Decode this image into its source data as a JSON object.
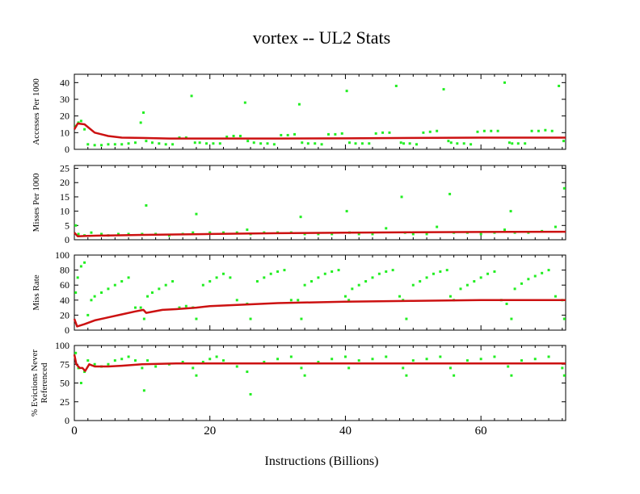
{
  "chart_data": {
    "type": "scatter",
    "title": "vortex -- UL2  Stats",
    "xlabel": "Instructions (Billions)",
    "xlim": [
      0,
      72.5
    ],
    "x_ticks": [
      0,
      20,
      40,
      60
    ],
    "x_tick_labels": [
      "0",
      "20",
      "40",
      "60"
    ],
    "colors": {
      "samples": "#22ee22",
      "cumulative": "#cc1111"
    },
    "panels": [
      {
        "ylabel": "Accesses Per 1000",
        "ylim": [
          0,
          45
        ],
        "y_ticks": [
          0,
          10,
          20,
          30,
          40
        ],
        "y_tick_labels": [
          "0",
          "10",
          "20",
          "30",
          "40"
        ],
        "series": [
          {
            "name": "cumulative",
            "x": [
              0,
              0.5,
              1.5,
              3,
              5,
              7,
              10,
              14,
              20,
              30,
              40,
              50,
              60,
              72.5
            ],
            "y": [
              12,
              15.5,
              15,
              10,
              8,
              7,
              6.8,
              6.5,
              6.5,
              6.5,
              6.6,
              6.8,
              7,
              7
            ]
          },
          {
            "name": "samples",
            "x": [
              0.2,
              0.6,
              1.0,
              1.5,
              2,
              3,
              4,
              5,
              6,
              7,
              8,
              9,
              9.8,
              10.2,
              10.6,
              11.5,
              12.5,
              13.5,
              14.5,
              15.5,
              16.5,
              17.3,
              17.8,
              18.5,
              19.5,
              20.5,
              21.5,
              22.5,
              23.5,
              24.5,
              25.2,
              25.6,
              26.5,
              27.5,
              28.5,
              29.5,
              30.5,
              31.5,
              32.5,
              33.2,
              33.6,
              34.5,
              35.5,
              36.5,
              37.5,
              38.5,
              39.5,
              40.2,
              40.6,
              41.5,
              42.5,
              43.5,
              44.5,
              45.5,
              46.5,
              47.5,
              48.2,
              48.6,
              49.5,
              50.5,
              51.5,
              52.5,
              53.5,
              54.5,
              55.2,
              55.6,
              56.5,
              57.5,
              58.5,
              59.5,
              60.5,
              61.5,
              62.5,
              63.5,
              64.2,
              64.6,
              65.5,
              66.5,
              67.5,
              68.5,
              69.5,
              70.5,
              71.5,
              72.2
            ],
            "y": [
              14,
              16,
              17,
              12,
              3,
              2.5,
              2.5,
              3,
              3,
              3,
              3.5,
              4,
              16,
              22,
              5,
              4,
              3.5,
              3,
              3,
              7,
              7,
              32,
              4,
              4,
              3.5,
              3.5,
              3.5,
              7.5,
              8,
              8,
              28,
              5,
              4,
              3.5,
              3.5,
              3,
              8.5,
              8.5,
              9,
              27,
              4,
              3.5,
              3.5,
              3,
              9,
              9,
              9.5,
              35,
              4,
              3.5,
              3.5,
              3.5,
              9.5,
              10,
              10,
              38,
              4,
              3.5,
              3.5,
              3,
              10,
              10.5,
              11,
              36,
              5,
              4,
              3.5,
              3.5,
              3,
              10.5,
              11,
              11,
              11,
              40,
              4,
              3.5,
              3.5,
              3.5,
              11,
              11,
              11.5,
              11,
              38,
              5
            ]
          }
        ]
      },
      {
        "ylabel": "Misses Per 1000",
        "ylim": [
          0,
          26
        ],
        "y_ticks": [
          0,
          5,
          10,
          15,
          20,
          25
        ],
        "y_tick_labels": [
          "0",
          "5",
          "10",
          "15",
          "20",
          "25"
        ],
        "series": [
          {
            "name": "cumulative",
            "x": [
              0,
              0.5,
              1.5,
              3,
              5,
              10,
              20,
              30,
              40,
              50,
              60,
              72.5
            ],
            "y": [
              2.5,
              1.2,
              1.3,
              1.4,
              1.5,
              1.7,
              2.0,
              2.3,
              2.5,
              2.6,
              2.7,
              2.8
            ]
          },
          {
            "name": "samples",
            "x": [
              0.2,
              0.6,
              1.5,
              2.5,
              4,
              5,
              6.5,
              8,
              10,
              10.6,
              12,
              14,
              16,
              17.5,
              18,
              20,
              22,
              24,
              25.5,
              26,
              28,
              30,
              32,
              33.4,
              34,
              36,
              38,
              40.2,
              40.6,
              42,
              44,
              46,
              48.3,
              48.8,
              50,
              52,
              53.5,
              55.4,
              56,
              58,
              60,
              62,
              63.5,
              64.4,
              65,
              67,
              69,
              71,
              72.3
            ],
            "y": [
              5,
              2,
              1.5,
              2.5,
              2,
              1.5,
              2,
              2,
              2,
              12,
              2,
              1.5,
              2,
              2.5,
              9,
              2.5,
              2.5,
              2.5,
              3.5,
              2,
              2.5,
              2.5,
              2.5,
              8,
              2,
              2,
              2,
              10,
              2.5,
              2,
              2,
              4,
              15,
              2.5,
              2,
              2,
              4.5,
              16,
              2.5,
              2.5,
              2,
              2.5,
              3.5,
              10,
              2.5,
              2.5,
              3,
              4.5,
              18
            ]
          }
        ]
      },
      {
        "ylabel": "Miss Rate",
        "ylim": [
          0,
          100
        ],
        "y_ticks": [
          0,
          20,
          40,
          60,
          80,
          100
        ],
        "y_tick_labels": [
          "0",
          "20",
          "40",
          "60",
          "80",
          "100"
        ],
        "series": [
          {
            "name": "cumulative",
            "x": [
              0,
              0.4,
              1.5,
              3,
              5,
              7,
              9,
              10.2,
              10.6,
              13,
              15,
              18,
              20,
              25,
              30,
              40,
              50,
              60,
              72.5
            ],
            "y": [
              15,
              5,
              8,
              13,
              17,
              21,
              25,
              27,
              23,
              27,
              28,
              30,
              32,
              34,
              36,
              38,
              39,
              40,
              40
            ]
          },
          {
            "name": "samples",
            "x": [
              0.2,
              0.5,
              1.0,
              1.5,
              2,
              2.5,
              3,
              4,
              5,
              6,
              7,
              8,
              9,
              9.8,
              10.3,
              10.8,
              11.5,
              12.5,
              13.5,
              14.5,
              15.5,
              16.5,
              17.5,
              18,
              19,
              20,
              21,
              22,
              23,
              24,
              25.5,
              26,
              27,
              28,
              29,
              30,
              31,
              32,
              33,
              33.5,
              34,
              35,
              36,
              37,
              38,
              39,
              40,
              40.5,
              41,
              42,
              43,
              44,
              45,
              46,
              47,
              48,
              48.5,
              49,
              50,
              51,
              52,
              53,
              54,
              55,
              55.5,
              56,
              57,
              58,
              59,
              60,
              61,
              62,
              63,
              63.8,
              64.5,
              65,
              66,
              67,
              68,
              69,
              70,
              71,
              72,
              72.3
            ],
            "y": [
              50,
              70,
              85,
              90,
              20,
              40,
              45,
              50,
              55,
              60,
              65,
              70,
              30,
              30,
              15,
              45,
              50,
              55,
              60,
              65,
              30,
              32,
              30,
              15,
              60,
              65,
              70,
              75,
              70,
              40,
              35,
              15,
              65,
              70,
              75,
              78,
              80,
              40,
              40,
              15,
              60,
              65,
              70,
              75,
              78,
              80,
              45,
              40,
              55,
              60,
              65,
              70,
              75,
              78,
              80,
              45,
              40,
              15,
              60,
              65,
              70,
              75,
              78,
              80,
              45,
              40,
              55,
              60,
              65,
              70,
              75,
              78,
              40,
              35,
              15,
              55,
              62,
              68,
              72,
              76,
              80,
              45,
              40,
              15
            ]
          }
        ]
      },
      {
        "ylabel": "% Evictions Never Referenced",
        "ylim": [
          0,
          100
        ],
        "y_ticks": [
          0,
          25,
          50,
          75,
          100
        ],
        "y_tick_labels": [
          "0",
          "25",
          "50",
          "75",
          "100"
        ],
        "series": [
          {
            "name": "cumulative",
            "x": [
              0,
              0.3,
              0.8,
              1.2,
              1.6,
              2.2,
              3,
              5,
              7,
              10,
              15,
              20,
              30,
              40,
              50,
              60,
              72.5
            ],
            "y": [
              88,
              75,
              70,
              70,
              66,
              75,
              72,
              72,
              73,
              75,
              76,
              76,
              76,
              76,
              76,
              76,
              76
            ]
          },
          {
            "name": "samples",
            "x": [
              0.2,
              0.6,
              1.0,
              1.5,
              2,
              3,
              4,
              5,
              6,
              7,
              8,
              9,
              10,
              10.3,
              10.8,
              12,
              14,
              16,
              17.5,
              18,
              19,
              20,
              21,
              22,
              24,
              25.5,
              26,
              28,
              30,
              32,
              33.5,
              34,
              36,
              38,
              40,
              40.5,
              42,
              44,
              46,
              48.5,
              49,
              50,
              52,
              54,
              55.5,
              56,
              58,
              60,
              62,
              64,
              64.5,
              66,
              68,
              70,
              72,
              72.3
            ],
            "y": [
              90,
              70,
              50,
              65,
              80,
              75,
              72,
              75,
              80,
              82,
              85,
              80,
              70,
              40,
              80,
              72,
              75,
              78,
              70,
              60,
              78,
              82,
              85,
              80,
              72,
              65,
              35,
              78,
              82,
              85,
              70,
              60,
              78,
              82,
              85,
              70,
              80,
              82,
              85,
              70,
              60,
              80,
              82,
              85,
              70,
              60,
              80,
              82,
              85,
              72,
              60,
              80,
              82,
              85,
              70,
              60
            ]
          }
        ]
      }
    ]
  }
}
